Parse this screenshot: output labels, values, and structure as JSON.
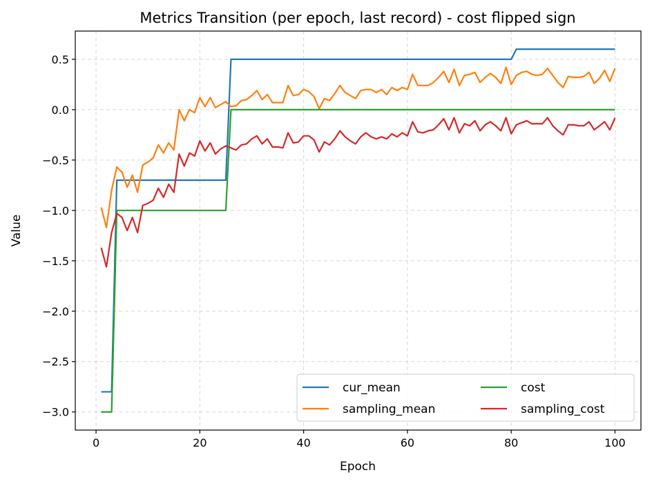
{
  "chart_data": {
    "type": "line",
    "title": "Metrics Transition (per epoch, last record) - cost flipped sign",
    "xlabel": "Epoch",
    "ylabel": "Value",
    "xlim": [
      -4,
      105
    ],
    "ylim": [
      -3.18,
      0.78
    ],
    "xticks": [
      0,
      20,
      40,
      60,
      80,
      100
    ],
    "xtick_labels": [
      "0",
      "20",
      "40",
      "60",
      "80",
      "100"
    ],
    "yticks": [
      -3.0,
      -2.5,
      -2.0,
      -1.5,
      -1.0,
      -0.5,
      0.0,
      0.5
    ],
    "ytick_labels": [
      "−3.0",
      "−2.5",
      "−2.0",
      "−1.5",
      "−1.0",
      "−0.5",
      "0.0",
      "0.5"
    ],
    "grid": true,
    "legend_position": "lower-right",
    "legend_columns": 2,
    "series": [
      {
        "name": "cur_mean",
        "color": "#1f77b4",
        "x": [
          1,
          3,
          4,
          25,
          26,
          80,
          81,
          100
        ],
        "y": [
          -2.8,
          -2.8,
          -0.7,
          -0.7,
          0.5,
          0.5,
          0.6,
          0.6
        ]
      },
      {
        "name": "sampling_mean",
        "color": "#ff7f0e",
        "x": [
          1,
          2,
          3,
          4,
          5,
          6,
          7,
          8,
          9,
          10,
          11,
          12,
          13,
          14,
          15,
          16,
          17,
          18,
          19,
          20,
          21,
          22,
          23,
          24,
          25,
          26,
          27,
          28,
          29,
          30,
          31,
          32,
          33,
          34,
          35,
          36,
          37,
          38,
          39,
          40,
          41,
          42,
          43,
          44,
          45,
          46,
          47,
          48,
          49,
          50,
          51,
          52,
          53,
          54,
          55,
          56,
          57,
          58,
          59,
          60,
          61,
          62,
          63,
          64,
          65,
          66,
          67,
          68,
          69,
          70,
          71,
          72,
          73,
          74,
          75,
          76,
          77,
          78,
          79,
          80,
          81,
          82,
          83,
          84,
          85,
          86,
          87,
          88,
          89,
          90,
          91,
          92,
          93,
          94,
          95,
          96,
          97,
          98,
          99,
          100
        ],
        "y": [
          -0.97,
          -1.17,
          -0.8,
          -0.57,
          -0.62,
          -0.77,
          -0.65,
          -0.82,
          -0.55,
          -0.52,
          -0.48,
          -0.35,
          -0.43,
          -0.33,
          -0.4,
          0.0,
          -0.11,
          0.0,
          -0.03,
          0.12,
          0.03,
          0.12,
          0.02,
          0.05,
          0.08,
          0.03,
          0.04,
          0.09,
          0.1,
          0.14,
          0.19,
          0.1,
          0.15,
          0.07,
          0.07,
          0.07,
          0.24,
          0.14,
          0.15,
          0.2,
          0.18,
          0.13,
          0.01,
          0.11,
          0.09,
          0.16,
          0.24,
          0.17,
          0.14,
          0.11,
          0.19,
          0.2,
          0.2,
          0.17,
          0.2,
          0.15,
          0.22,
          0.19,
          0.22,
          0.2,
          0.35,
          0.24,
          0.24,
          0.24,
          0.27,
          0.32,
          0.38,
          0.27,
          0.4,
          0.24,
          0.34,
          0.35,
          0.37,
          0.27,
          0.32,
          0.36,
          0.32,
          0.26,
          0.42,
          0.25,
          0.34,
          0.37,
          0.38,
          0.35,
          0.34,
          0.35,
          0.41,
          0.34,
          0.27,
          0.22,
          0.33,
          0.32,
          0.32,
          0.33,
          0.37,
          0.26,
          0.31,
          0.39,
          0.28,
          0.41
        ]
      },
      {
        "name": "cost",
        "color": "#2ca02c",
        "x": [
          1,
          3,
          4,
          25,
          26,
          100
        ],
        "y": [
          -3.0,
          -3.0,
          -1.0,
          -1.0,
          0.0,
          0.0
        ]
      },
      {
        "name": "sampling_cost",
        "color": "#d62728",
        "x": [
          1,
          2,
          3,
          4,
          5,
          6,
          7,
          8,
          9,
          10,
          11,
          12,
          13,
          14,
          15,
          16,
          17,
          18,
          19,
          20,
          21,
          22,
          23,
          24,
          25,
          26,
          27,
          28,
          29,
          30,
          31,
          32,
          33,
          34,
          35,
          36,
          37,
          38,
          39,
          40,
          41,
          42,
          43,
          44,
          45,
          46,
          47,
          48,
          49,
          50,
          51,
          52,
          53,
          54,
          55,
          56,
          57,
          58,
          59,
          60,
          61,
          62,
          63,
          64,
          65,
          66,
          67,
          68,
          69,
          70,
          71,
          72,
          73,
          74,
          75,
          76,
          77,
          78,
          79,
          80,
          81,
          82,
          83,
          84,
          85,
          86,
          87,
          88,
          89,
          90,
          91,
          92,
          93,
          94,
          95,
          96,
          97,
          98,
          99,
          100
        ],
        "y": [
          -1.37,
          -1.56,
          -1.22,
          -1.03,
          -1.07,
          -1.2,
          -1.07,
          -1.22,
          -0.95,
          -0.93,
          -0.9,
          -0.78,
          -0.87,
          -0.74,
          -0.82,
          -0.44,
          -0.56,
          -0.43,
          -0.46,
          -0.31,
          -0.41,
          -0.33,
          -0.44,
          -0.39,
          -0.36,
          -0.38,
          -0.4,
          -0.35,
          -0.34,
          -0.29,
          -0.26,
          -0.34,
          -0.29,
          -0.37,
          -0.37,
          -0.38,
          -0.23,
          -0.33,
          -0.32,
          -0.26,
          -0.26,
          -0.3,
          -0.42,
          -0.32,
          -0.35,
          -0.29,
          -0.21,
          -0.27,
          -0.31,
          -0.34,
          -0.27,
          -0.23,
          -0.27,
          -0.29,
          -0.27,
          -0.29,
          -0.24,
          -0.27,
          -0.23,
          -0.26,
          -0.12,
          -0.22,
          -0.23,
          -0.21,
          -0.2,
          -0.15,
          -0.09,
          -0.2,
          -0.08,
          -0.23,
          -0.14,
          -0.16,
          -0.11,
          -0.21,
          -0.15,
          -0.12,
          -0.16,
          -0.21,
          -0.08,
          -0.24,
          -0.15,
          -0.13,
          -0.11,
          -0.14,
          -0.14,
          -0.14,
          -0.08,
          -0.16,
          -0.21,
          -0.25,
          -0.15,
          -0.15,
          -0.16,
          -0.16,
          -0.12,
          -0.2,
          -0.16,
          -0.12,
          -0.2,
          -0.08
        ]
      }
    ]
  }
}
